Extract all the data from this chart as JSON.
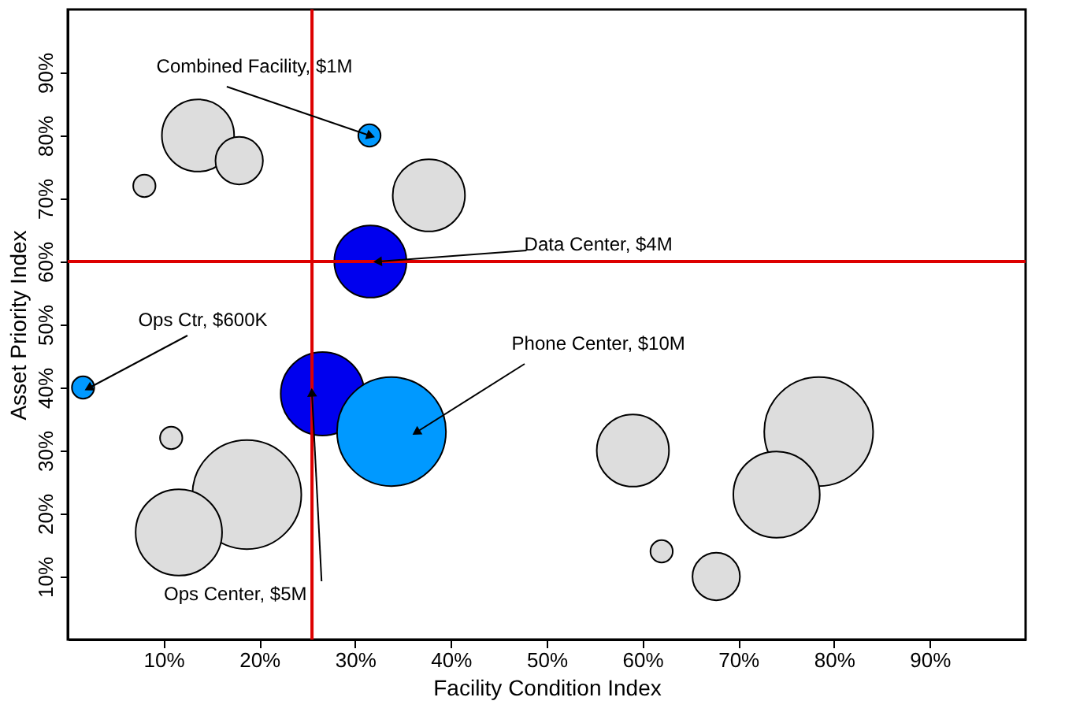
{
  "chart_data": {
    "type": "bubble",
    "xlabel": "Facility Condition Index",
    "ylabel": "Asset Priority  Index",
    "xlim": [
      0,
      100
    ],
    "ylim": [
      0,
      100
    ],
    "xticks": [
      {
        "value": 10,
        "label": "10%"
      },
      {
        "value": 20,
        "label": "20%"
      },
      {
        "value": 30,
        "label": "30%"
      },
      {
        "value": 40,
        "label": "40%"
      },
      {
        "value": 50,
        "label": "50%"
      },
      {
        "value": 60,
        "label": "60%"
      },
      {
        "value": 70,
        "label": "70%"
      },
      {
        "value": 80,
        "label": "80%"
      },
      {
        "value": 90,
        "label": "90%"
      }
    ],
    "yticks": [
      {
        "value": 10,
        "label": "10%"
      },
      {
        "value": 20,
        "label": "20%"
      },
      {
        "value": 30,
        "label": "30%"
      },
      {
        "value": 40,
        "label": "40%"
      },
      {
        "value": 50,
        "label": "50%"
      },
      {
        "value": 60,
        "label": "60%"
      },
      {
        "value": 70,
        "label": "70%"
      },
      {
        "value": 80,
        "label": "80%"
      },
      {
        "value": 90,
        "label": "90%"
      }
    ],
    "grid": false,
    "series": [
      {
        "x": [
          13.6,
          17.9,
          8,
          31.5,
          37.7,
          31.6,
          1.6,
          10.8,
          26.6,
          33.8,
          18.7,
          11.6,
          59,
          78.4,
          74,
          62,
          67.7
        ],
        "values": [
          80,
          76,
          72,
          80,
          70.5,
          60,
          40,
          32,
          39,
          33,
          23,
          17,
          30,
          33,
          23,
          14,
          10
        ],
        "sizes": [
          0.44,
          0.19,
          0.042,
          0.042,
          0.44,
          0.44,
          0.042,
          0.042,
          0.59,
          1,
          1,
          0.63,
          0.44,
          1,
          0.63,
          0.042,
          0.19
        ],
        "colors": [
          "#dddddd",
          "#dddddd",
          "#dddddd",
          "#0099ff",
          "#dddddd",
          "#0000ee",
          "#0099ff",
          "#dddddd",
          "#0000ee",
          "#0099ff",
          "#dddddd",
          "#dddddd",
          "#dddddd",
          "#dddddd",
          "#dddddd",
          "#dddddd",
          "#dddddd"
        ]
      }
    ],
    "ref_lines": [
      {
        "axis": "x",
        "value": 25.5,
        "color": "#dd0000"
      },
      {
        "axis": "y",
        "value": 60,
        "color": "#dd0000"
      }
    ],
    "annotations": [
      {
        "text": "Combined Facility, $1M",
        "x": 31.5,
        "y": 80
      },
      {
        "text": "Data Center, $4M",
        "x": 32.5,
        "y": 60
      },
      {
        "text": "Ops Ctr, $600K",
        "x": 2.3,
        "y": 40
      },
      {
        "text": "Phone Center, $10M",
        "x": 36.5,
        "y": 33
      },
      {
        "text": "Ops Center, $5M",
        "x": 25.5,
        "y": 39
      }
    ]
  }
}
